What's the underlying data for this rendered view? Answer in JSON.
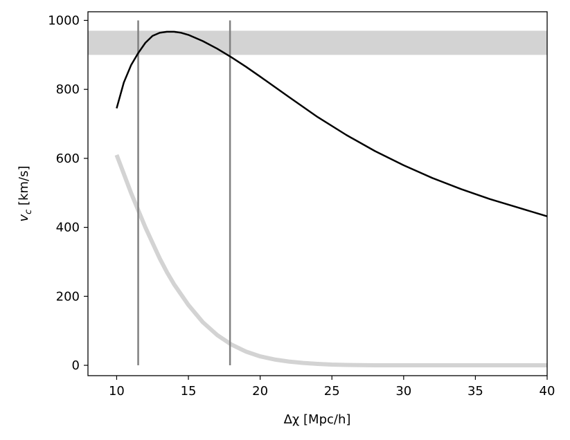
{
  "chart_data": {
    "type": "line",
    "title": "",
    "xlabel": "Δχ [Mpc/h]",
    "ylabel_main": "v",
    "ylabel_sub": "c",
    "ylabel_unit": " [km/s]",
    "xlim": [
      8,
      40
    ],
    "ylim": [
      -30,
      1025
    ],
    "xticks": [
      10,
      15,
      20,
      25,
      30,
      35,
      40
    ],
    "yticks": [
      0,
      200,
      400,
      600,
      800,
      1000
    ],
    "grid": false,
    "series": [
      {
        "style": "black-line",
        "color": "#000000",
        "x": [
          10,
          10.5,
          11,
          11.5,
          12,
          12.5,
          13,
          13.5,
          14,
          14.5,
          15,
          16,
          17,
          18,
          19,
          20,
          22,
          24,
          26,
          28,
          30,
          32,
          34,
          36,
          38,
          40
        ],
        "y": [
          745,
          820,
          870,
          905,
          935,
          955,
          964,
          967,
          967,
          964,
          958,
          940,
          918,
          893,
          866,
          837,
          778,
          720,
          668,
          621,
          580,
          543,
          511,
          482,
          457,
          432
        ]
      },
      {
        "style": "light-gray-thick-line",
        "color": "#d3d3d3",
        "x": [
          10,
          10.5,
          11,
          11.5,
          12,
          12.5,
          13,
          13.5,
          14,
          15,
          16,
          17,
          18,
          19,
          20,
          21,
          22,
          23,
          24,
          25,
          26,
          28,
          30,
          35,
          40
        ],
        "y": [
          610,
          555,
          500,
          450,
          400,
          355,
          310,
          270,
          235,
          175,
          125,
          88,
          60,
          40,
          26,
          17,
          11,
          7,
          4,
          2,
          1,
          0,
          0,
          0,
          0
        ]
      }
    ],
    "band": {
      "y1": 900,
      "y2": 970,
      "color": "#d3d3d3"
    },
    "vlines": {
      "x": [
        11.5,
        17.9
      ],
      "color": "#808080"
    },
    "hatched_region": {
      "x_from": 11.5,
      "x_to": 17.9,
      "under_series": 1,
      "hatch": "diagonal"
    }
  }
}
